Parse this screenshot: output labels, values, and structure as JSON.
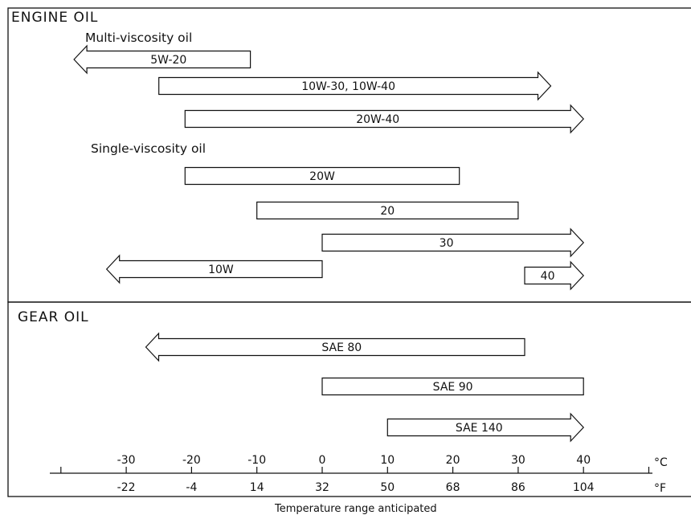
{
  "sections": {
    "engine": {
      "title": "ENGINE OIL",
      "multi_heading": "Multi-viscosity oil",
      "single_heading": "Single-viscosity oil"
    },
    "gear": {
      "title": "GEAR OIL"
    }
  },
  "chart_data": {
    "type": "range-bar",
    "title": "",
    "xlabel": "Temperature range anticipated",
    "celsius_unit": "°C",
    "fahrenheit_unit": "°F",
    "xlim_celsius": [
      -40,
      50
    ],
    "celsius_ticks": [
      "-30",
      "-20",
      "-10",
      "0",
      "10",
      "20",
      "30",
      "40"
    ],
    "fahrenheit_ticks": [
      "-22",
      "-4",
      "14",
      "32",
      "50",
      "68",
      "86",
      "104"
    ],
    "bars": [
      {
        "id": "bar-5w20",
        "section": "engine",
        "group": "Multi-viscosity oil",
        "label": "5W-20",
        "from_c": -38,
        "to_c": -11,
        "open_low": true,
        "open_high": false
      },
      {
        "id": "bar-10w30",
        "section": "engine",
        "group": "Multi-viscosity oil",
        "label": "10W-30, 10W-40",
        "from_c": -25,
        "to_c": 35,
        "open_low": false,
        "open_high": true
      },
      {
        "id": "bar-20w40",
        "section": "engine",
        "group": "Multi-viscosity oil",
        "label": "20W-40",
        "from_c": -21,
        "to_c": 40,
        "open_low": false,
        "open_high": true
      },
      {
        "id": "bar-20w",
        "section": "engine",
        "group": "Single-viscosity oil",
        "label": "20W",
        "from_c": -21,
        "to_c": 21,
        "open_low": false,
        "open_high": false
      },
      {
        "id": "bar-20",
        "section": "engine",
        "group": "Single-viscosity oil",
        "label": "20",
        "from_c": -10,
        "to_c": 30,
        "open_low": false,
        "open_high": false
      },
      {
        "id": "bar-30",
        "section": "engine",
        "group": "Single-viscosity oil",
        "label": "30",
        "from_c": 0,
        "to_c": 40,
        "open_low": false,
        "open_high": true
      },
      {
        "id": "bar-10w",
        "section": "engine",
        "group": "Single-viscosity oil",
        "label": "10W",
        "from_c": -33,
        "to_c": 0,
        "open_low": true,
        "open_high": false
      },
      {
        "id": "bar-40",
        "section": "engine",
        "group": "Single-viscosity oil",
        "label": "40",
        "from_c": 31,
        "to_c": 40,
        "open_low": false,
        "open_high": true
      },
      {
        "id": "bar-sae80",
        "section": "gear",
        "group": "",
        "label": "SAE 80",
        "from_c": -27,
        "to_c": 31,
        "open_low": true,
        "open_high": false
      },
      {
        "id": "bar-sae90",
        "section": "gear",
        "group": "",
        "label": "SAE 90",
        "from_c": 0,
        "to_c": 40,
        "open_low": false,
        "open_high": false
      },
      {
        "id": "bar-sae140",
        "section": "gear",
        "group": "",
        "label": "SAE 140",
        "from_c": 10,
        "to_c": 40,
        "open_low": false,
        "open_high": true
      }
    ]
  }
}
